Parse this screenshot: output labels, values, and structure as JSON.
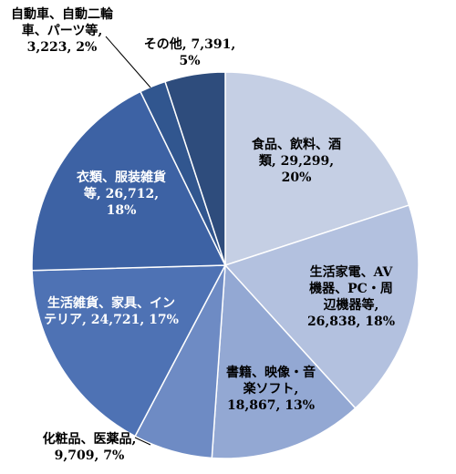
{
  "chart_data": {
    "type": "pie",
    "slices": [
      {
        "name": "食品、飲料、酒類",
        "value": 29299,
        "percent": "20%",
        "color": "#c5cfe4",
        "label_lines": [
          "食品、飲料、酒",
          "類, 29,299,",
          "20%"
        ]
      },
      {
        "name": "生活家電、AV機器、PC・周辺機器等",
        "value": 26838,
        "percent": "18%",
        "color": "#b3c1df",
        "label_lines": [
          "生活家電、AV",
          "機器、PC・周",
          "辺機器等,",
          "26,838, 18%"
        ]
      },
      {
        "name": "書籍、映像・音楽ソフト",
        "value": 18867,
        "percent": "13%",
        "color": "#93a8d3",
        "label_lines": [
          "書籍、映像・音",
          "楽ソフト,",
          "18,867, 13%"
        ]
      },
      {
        "name": "化粧品、医薬品",
        "value": 9709,
        "percent": "7%",
        "color": "#6e8bc4",
        "label_lines": [
          "化粧品、医薬品,",
          "9,709, 7%"
        ]
      },
      {
        "name": "生活雑貨、家具、インテリア",
        "value": 24721,
        "percent": "17%",
        "color": "#4e72b4",
        "label_lines": [
          "生活雑貨、家具、イン",
          "テリア, 24,721, 17%"
        ]
      },
      {
        "name": "衣類、服装雑貨等",
        "value": 26712,
        "percent": "18%",
        "color": "#3d62a4",
        "label_lines": [
          "衣類、服装雑貨",
          "等, 26,712,",
          "18%"
        ]
      },
      {
        "name": "自動車、自動二輪車、パーツ等",
        "value": 3223,
        "percent": "2%",
        "color": "#31568f",
        "label_lines": [
          "自動車、自動二輪",
          "車、パーツ等,",
          "3,223, 2%"
        ]
      },
      {
        "name": "その他",
        "value": 7391,
        "percent": "5%",
        "color": "#2e4c7c",
        "label_lines": [
          "その他, 7,391,",
          "5%"
        ]
      }
    ]
  }
}
